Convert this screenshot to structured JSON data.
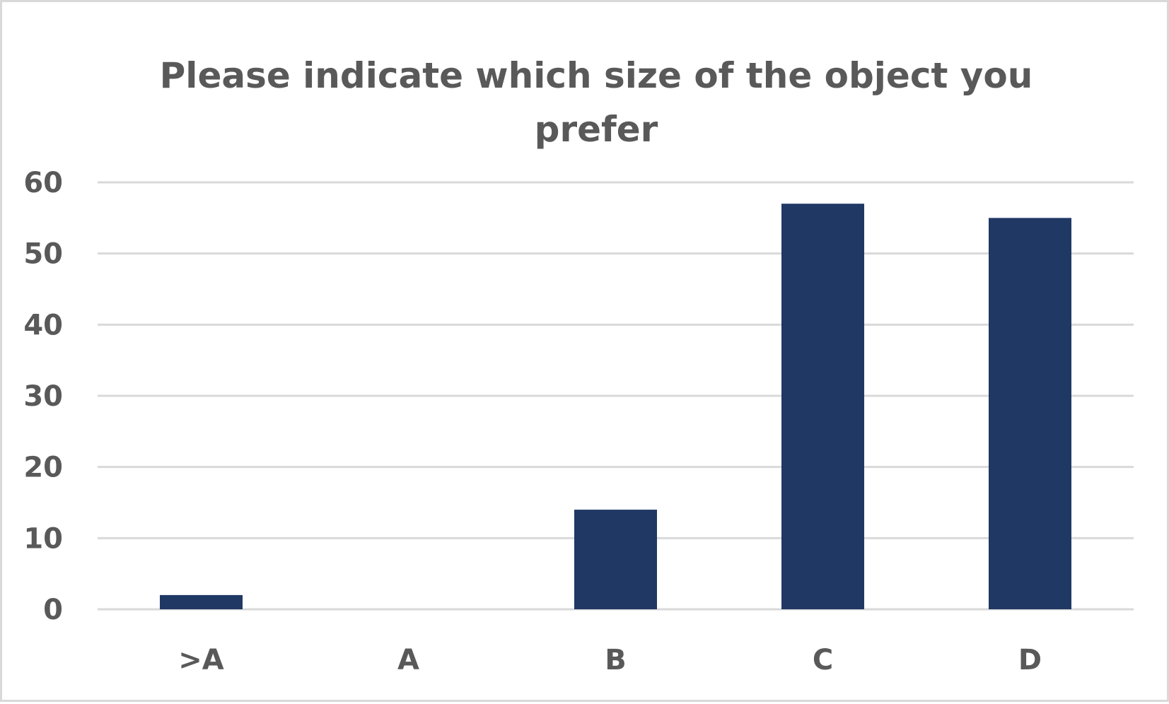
{
  "chart_data": {
    "type": "bar",
    "title": "Please indicate which size of the object you prefer",
    "xlabel": "",
    "ylabel": "",
    "categories": [
      ">A",
      "A",
      "B",
      "C",
      "D"
    ],
    "values": [
      2,
      0,
      14,
      57,
      55
    ],
    "ylim": [
      0,
      60
    ],
    "yticks": [
      "0",
      "10",
      "20",
      "30",
      "40",
      "50",
      "60"
    ],
    "grid": true,
    "legend": "none",
    "colors": {
      "bar": "#203864",
      "grid": "#d9d9d9",
      "text": "#595959"
    }
  }
}
